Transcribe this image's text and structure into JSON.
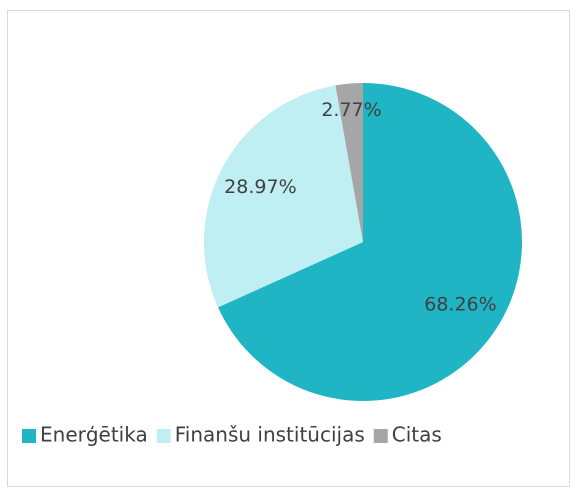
{
  "chart_data": {
    "type": "pie",
    "categories": [
      "Enerģētika",
      "Finanšu institūcijas",
      "Citas"
    ],
    "values": [
      68.26,
      28.97,
      2.77
    ],
    "value_labels": [
      "68.26%",
      "28.97%",
      "2.77%"
    ],
    "colors": [
      "#20b5c4",
      "#bfeef3",
      "#a6a6a6"
    ],
    "legend": "bottom"
  }
}
